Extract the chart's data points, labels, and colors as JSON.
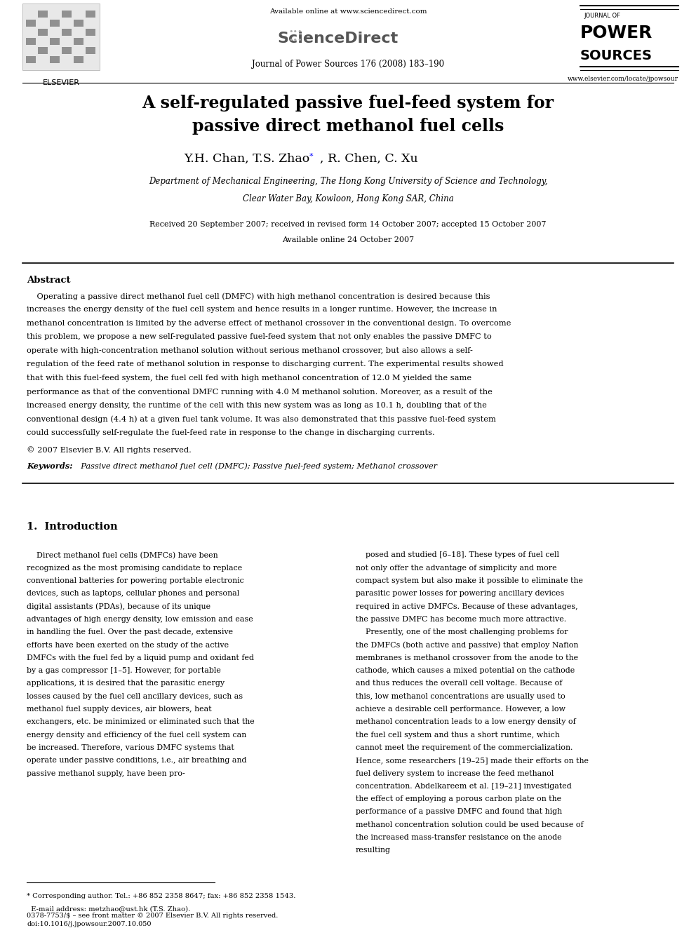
{
  "page_width": 9.92,
  "page_height": 13.23,
  "background_color": "#ffffff",
  "header": {
    "available_online": "Available online at www.sciencedirect.com",
    "sciencedirect": "ScienceDirect",
    "journal_line": "Journal of Power Sources 176 (2008) 183–190",
    "elsevier_label": "ELSEVIER",
    "journal_name_top": "JOURNAL OF",
    "journal_name_main": "POWER\nSOURCES",
    "website": "www.elsevier.com/locate/jpowsour"
  },
  "title": "A self-regulated passive fuel-feed system for\npassive direct methanol fuel cells",
  "authors": "Y.H. Chan, T.S. Zhao",
  "authors2": ", R. Chen, C. Xu",
  "affiliation1": "Department of Mechanical Engineering, The Hong Kong University of Science and Technology,",
  "affiliation2": "Clear Water Bay, Kowloon, Hong Kong SAR, China",
  "received": "Received 20 September 2007; received in revised form 14 October 2007; accepted 15 October 2007",
  "available": "Available online 24 October 2007",
  "abstract_title": "Abstract",
  "abstract_text": "Operating a passive direct methanol fuel cell (DMFC) with high methanol concentration is desired because this increases the energy density of the fuel cell system and hence results in a longer runtime. However, the increase in methanol concentration is limited by the adverse effect of methanol crossover in the conventional design. To overcome this problem, we propose a new self-regulated passive fuel-feed system that not only enables the passive DMFC to operate with high-concentration methanol solution without serious methanol crossover, but also allows a self-regulation of the feed rate of methanol solution in response to discharging current. The experimental results showed that with this fuel-feed system, the fuel cell fed with high methanol concentration of 12.0 M yielded the same performance as that of the conventional DMFC running with 4.0 M methanol solution. Moreover, as a result of the increased energy density, the runtime of the cell with this new system was as long as 10.1 h, doubling that of the conventional design (4.4 h) at a given fuel tank volume. It was also demonstrated that this passive fuel-feed system could successfully self-regulate the fuel-feed rate in response to the change in discharging currents.",
  "copyright": "© 2007 Elsevier B.V. All rights reserved.",
  "keywords_label": "Keywords:",
  "keywords_text": "  Passive direct methanol fuel cell (DMFC); Passive fuel-feed system; Methanol crossover",
  "section1_title": "1.  Introduction",
  "intro_left": "Direct methanol fuel cells (DMFCs) have been recognized as the most promising candidate to replace conventional batteries for powering portable electronic devices, such as laptops, cellular phones and personal digital assistants (PDAs), because of its unique advantages of high energy density, low emission and ease in handling the fuel. Over the past decade, extensive efforts have been exerted on the study of the active DMFCs with the fuel fed by a liquid pump and oxidant fed by a gas compressor [1–5]. However, for portable applications, it is desired that the parasitic energy losses caused by the fuel cell ancillary devices, such as methanol fuel supply devices, air blowers, heat exchangers, etc. be minimized or eliminated such that the energy density and efficiency of the fuel cell system can be increased. Therefore, various DMFC systems that operate under passive conditions, i.e., air breathing and passive methanol supply, have been pro-",
  "intro_right": "posed and studied [6–18]. These types of fuel cell not only offer the advantage of simplicity and more compact system but also make it possible to eliminate the parasitic power losses for powering ancillary devices required in active DMFCs. Because of these advantages, the passive DMFC has become much more attractive.\n    Presently, one of the most challenging problems for the DMFCs (both active and passive) that employ Nafion membranes is methanol crossover from the anode to the cathode, which causes a mixed potential on the cathode and thus reduces the overall cell voltage. Because of this, low methanol concentrations are usually used to achieve a desirable cell performance. However, a low methanol concentration leads to a low energy density of the fuel cell system and thus a short runtime, which cannot meet the requirement of the commercialization. Hence, some researchers [19–25] made their efforts on the fuel delivery system to increase the feed methanol concentration. Abdelkareem et al. [19–21] investigated the effect of employing a porous carbon plate on the performance of a passive DMFC and found that high methanol concentration solution could be used because of the increased mass-transfer resistance on the anode resulting",
  "footnote": "* Corresponding author. Tel.: +86 852 2358 8647; fax: +86 852 2358 1543.\n  E-mail address: metzhao@ust.hk (T.S. Zhao).",
  "footer_left": "0378-7753/$ – see front matter © 2007 Elsevier B.V. All rights reserved.",
  "footer_doi": "doi:10.1016/j.jpowsour.2007.10.050"
}
